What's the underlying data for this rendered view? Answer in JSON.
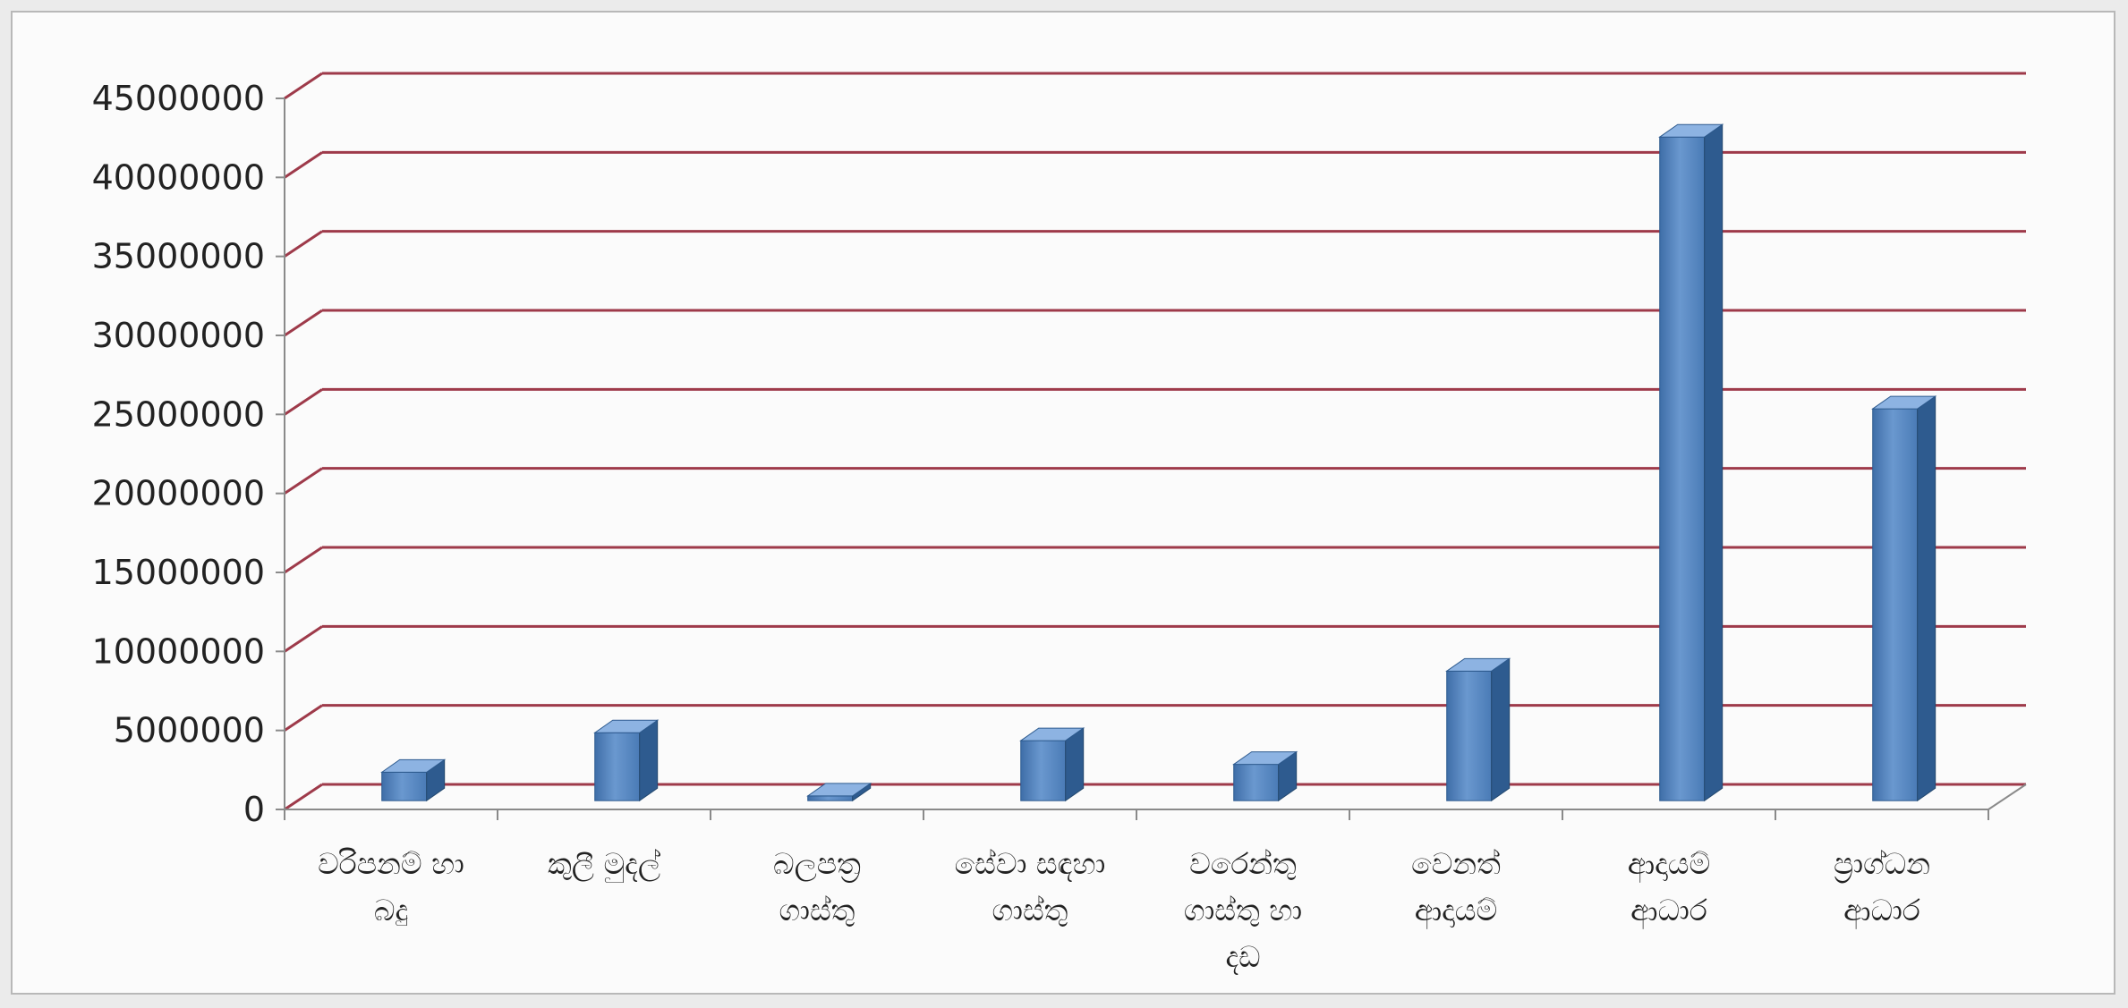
{
  "chart_data": {
    "type": "bar",
    "title": "",
    "xlabel": "",
    "ylabel": "",
    "categories": [
      [
        "වරිපනම් හා",
        "බදු"
      ],
      [
        "කුලී මුදල්"
      ],
      [
        "බලපත්‍ර",
        "ගාස්තු"
      ],
      [
        "සේවා සඳහා",
        "ගාස්තු"
      ],
      [
        "වරෙන්තු",
        "ගාස්තු හා",
        "දඩ"
      ],
      [
        "වෙනත්",
        "ආදායම්"
      ],
      [
        "ආදායම්",
        "ආධාර"
      ],
      [
        "ප්‍රාග්ධන",
        "ආධාර"
      ]
    ],
    "values": [
      1800000,
      4300000,
      300000,
      3800000,
      2300000,
      8200000,
      42000000,
      24800000
    ],
    "ylim": [
      0,
      45000000
    ],
    "yticks": [
      0,
      5000000,
      10000000,
      15000000,
      20000000,
      25000000,
      30000000,
      35000000,
      40000000,
      45000000
    ],
    "ytick_labels": [
      "0",
      "5000000",
      "10000000",
      "15000000",
      "20000000",
      "25000000",
      "30000000",
      "35000000",
      "40000000",
      "45000000"
    ],
    "grid": true,
    "legend": "none",
    "style": "3d-column",
    "colors": {
      "bar_front": "#4f81bd",
      "bar_front_light": "#6d9bd0",
      "bar_side": "#2e5b8f",
      "bar_top": "#8db3e2",
      "gridline": "#9e3a4a",
      "axis": "#8a8a8a",
      "wall": "#fbfbfb",
      "frame": "#b8b8b8"
    }
  }
}
